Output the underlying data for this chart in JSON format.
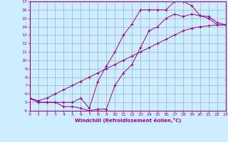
{
  "xlabel": "Windchill (Refroidissement éolien,°C)",
  "xlim": [
    0,
    23
  ],
  "ylim": [
    4,
    17
  ],
  "xticks": [
    0,
    1,
    2,
    3,
    4,
    5,
    6,
    7,
    8,
    9,
    10,
    11,
    12,
    13,
    14,
    15,
    16,
    17,
    18,
    19,
    20,
    21,
    22,
    23
  ],
  "yticks": [
    4,
    5,
    6,
    7,
    8,
    9,
    10,
    11,
    12,
    13,
    14,
    15,
    16,
    17
  ],
  "bg_color": "#cceeff",
  "line_color": "#990099",
  "grid_color": "#aaaacc",
  "curve1_x": [
    0,
    1,
    2,
    3,
    4,
    5,
    6,
    7,
    8,
    9,
    10,
    11,
    12,
    13,
    14,
    15,
    16,
    17,
    18,
    19,
    20,
    21,
    22,
    23
  ],
  "curve1_y": [
    5.5,
    5.0,
    5.0,
    5.0,
    4.5,
    4.5,
    4.3,
    4.0,
    4.2,
    4.2,
    7.0,
    8.5,
    9.5,
    11.5,
    13.5,
    14.0,
    15.0,
    15.5,
    15.2,
    15.5,
    15.3,
    15.2,
    14.5,
    14.2
  ],
  "curve2_x": [
    0,
    1,
    2,
    3,
    4,
    5,
    6,
    7,
    8,
    9,
    10,
    11,
    12,
    13,
    14,
    15,
    16,
    17,
    18,
    19,
    20,
    21,
    22,
    23
  ],
  "curve2_y": [
    5.5,
    5.0,
    5.0,
    5.0,
    5.0,
    5.0,
    5.5,
    4.3,
    7.5,
    9.3,
    11.0,
    13.0,
    14.3,
    16.0,
    16.0,
    16.0,
    16.0,
    17.0,
    17.0,
    16.5,
    15.3,
    15.0,
    14.2,
    14.2
  ],
  "curve3_x": [
    0,
    1,
    2,
    3,
    4,
    5,
    6,
    7,
    8,
    9,
    10,
    11,
    12,
    13,
    14,
    15,
    16,
    17,
    18,
    19,
    20,
    21,
    22,
    23
  ],
  "curve3_y": [
    5.5,
    5.2,
    5.5,
    6.0,
    6.5,
    7.0,
    7.5,
    8.0,
    8.5,
    9.0,
    9.5,
    10.0,
    10.5,
    11.0,
    11.5,
    12.0,
    12.5,
    13.0,
    13.5,
    13.8,
    14.0,
    14.1,
    14.2,
    14.2
  ]
}
